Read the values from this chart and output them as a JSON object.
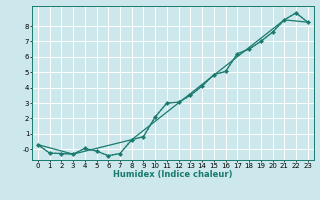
{
  "xlabel": "Humidex (Indice chaleur)",
  "bg_color": "#cce8ec",
  "grid_color": "#ffffff",
  "line_color": "#1a7a6e",
  "xlim": [
    -0.5,
    23.5
  ],
  "ylim": [
    -0.7,
    9.3
  ],
  "x_ticks": [
    0,
    1,
    2,
    3,
    4,
    5,
    6,
    7,
    8,
    9,
    10,
    11,
    12,
    13,
    14,
    15,
    16,
    17,
    18,
    19,
    20,
    21,
    22,
    23
  ],
  "y_ticks": [
    0,
    1,
    2,
    3,
    4,
    5,
    6,
    7,
    8
  ],
  "y_tick_labels": [
    "-0",
    "1",
    "2",
    "3",
    "4",
    "5",
    "6",
    "7",
    "8"
  ],
  "dotted_x": [
    0,
    1,
    2,
    3,
    4,
    5,
    6,
    7,
    8,
    9,
    10,
    11,
    12,
    13,
    14,
    15,
    16,
    17,
    18,
    19,
    20,
    21,
    22,
    23
  ],
  "dotted_y": [
    0.3,
    -0.25,
    -0.28,
    -0.32,
    0.05,
    -0.12,
    -0.42,
    -0.28,
    0.62,
    0.82,
    2.1,
    3.0,
    3.05,
    3.5,
    4.1,
    4.85,
    5.05,
    6.2,
    6.5,
    7.0,
    7.6,
    8.4,
    8.85,
    8.25
  ],
  "solid_x": [
    0,
    1,
    2,
    3,
    4,
    5,
    6,
    7,
    8,
    9,
    10,
    11,
    12,
    13,
    14,
    15,
    16,
    17,
    18,
    19,
    20,
    21,
    22,
    23
  ],
  "solid_y": [
    0.3,
    -0.25,
    -0.28,
    -0.32,
    0.05,
    -0.12,
    -0.42,
    -0.28,
    0.62,
    0.82,
    2.1,
    3.0,
    3.05,
    3.5,
    4.1,
    4.85,
    5.05,
    6.2,
    6.5,
    7.0,
    7.6,
    8.4,
    8.85,
    8.25
  ],
  "straight_x": [
    0,
    3,
    8,
    21,
    23
  ],
  "straight_y": [
    0.3,
    -0.32,
    0.62,
    8.4,
    8.25
  ],
  "tick_fontsize": 5.0,
  "xlabel_fontsize": 6.0,
  "linewidth": 0.9,
  "markersize": 2.2
}
